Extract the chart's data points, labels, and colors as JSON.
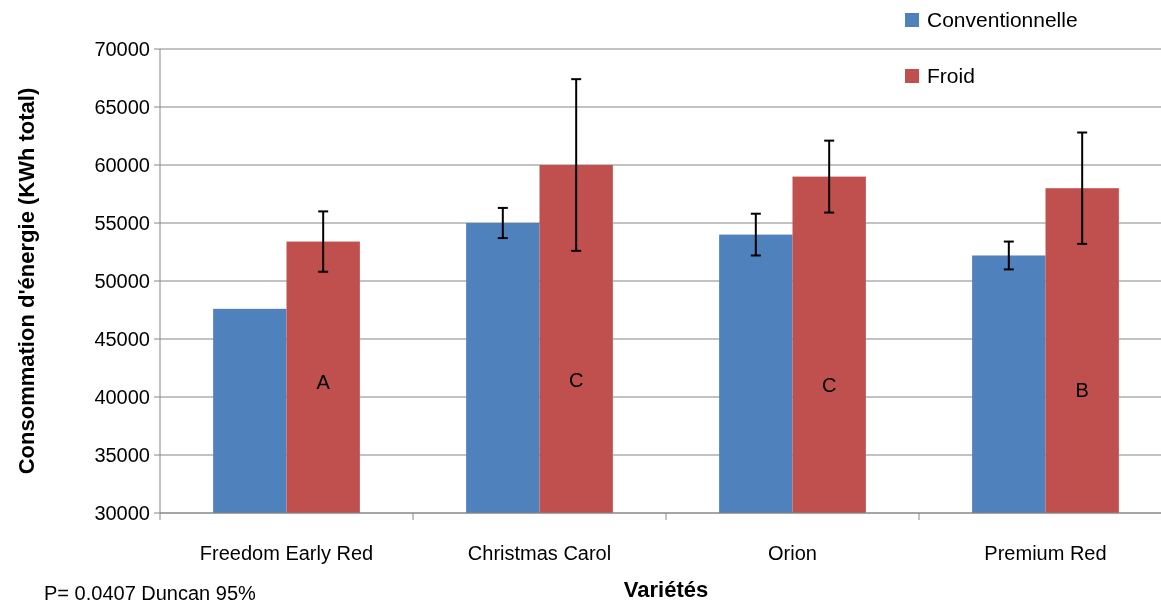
{
  "chart_data": {
    "type": "bar",
    "xlabel": "Variétés",
    "ylabel": "Consommation d'énergie (KWh total)",
    "categories": [
      "Freedom Early Red",
      "Christmas Carol",
      "Orion",
      "Premium Red"
    ],
    "series": [
      {
        "name": "Conventionnelle",
        "color": "#4f81bd",
        "values": [
          47600,
          55000,
          54000,
          52200
        ],
        "errors": [
          null,
          1300,
          1800,
          1200
        ]
      },
      {
        "name": "Froid",
        "color": "#c0504d",
        "values": [
          53400,
          60000,
          59000,
          58000
        ],
        "errors": [
          2600,
          7400,
          3100,
          4800
        ]
      }
    ],
    "ylim": [
      30000,
      70000
    ],
    "yticks": [
      30000,
      35000,
      40000,
      45000,
      50000,
      55000,
      60000,
      65000,
      70000
    ],
    "grid": "y",
    "legend": "top right",
    "annotations": [
      {
        "text": "A",
        "x": "Freedom Early Red",
        "y": 41300
      },
      {
        "text": "C",
        "x": "Christmas Carol",
        "y": 41500
      },
      {
        "text": "C",
        "x": "Orion",
        "y": 41000
      },
      {
        "text": "B",
        "x": "Premium Red",
        "y": 40600
      },
      "P= 0.0407 Duncan 95%"
    ]
  }
}
